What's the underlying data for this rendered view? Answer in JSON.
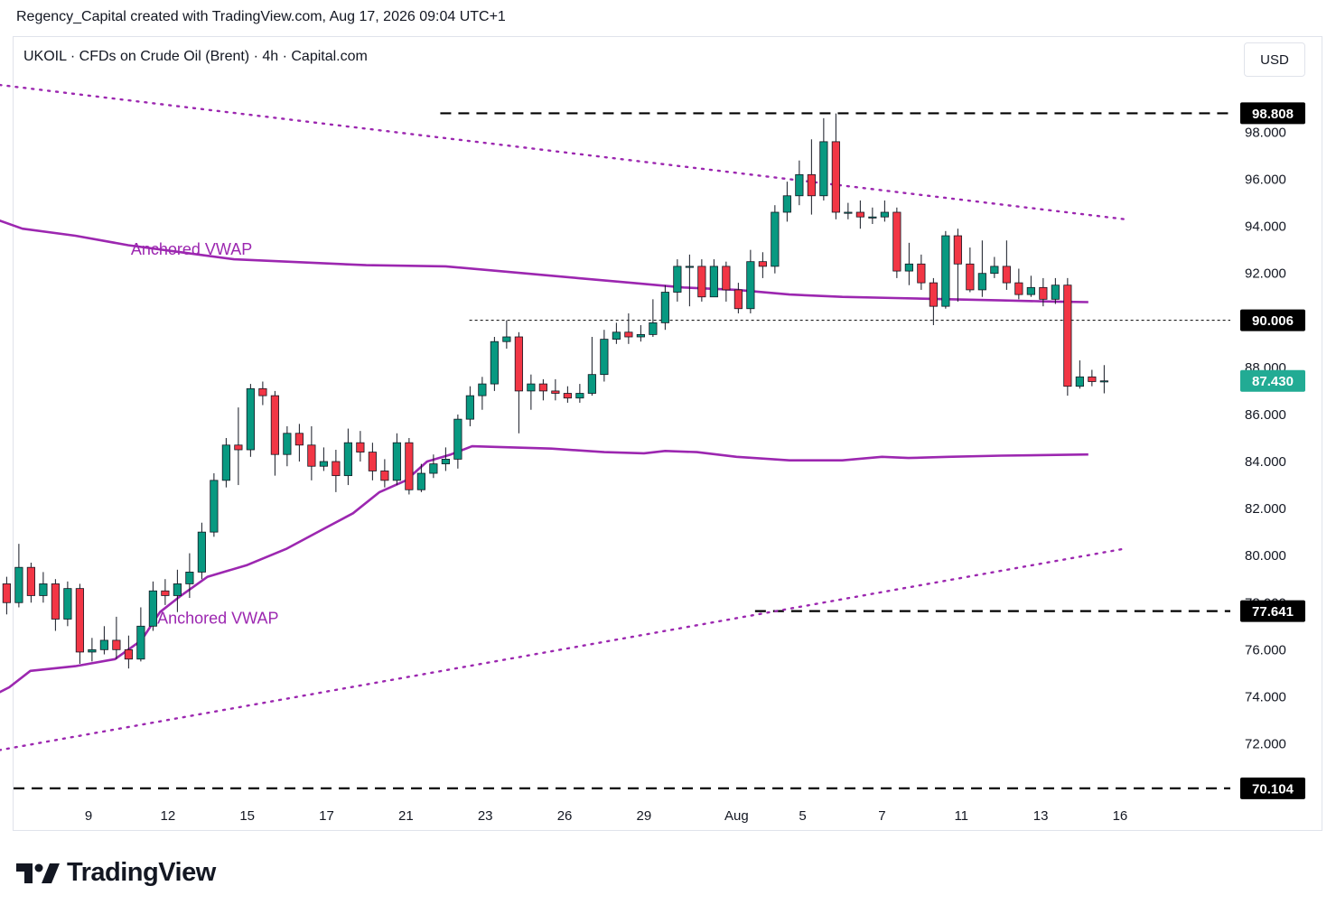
{
  "header": {
    "attribution": "Regency_Capital created with TradingView.com, Aug 17, 2026 09:04 UTC+1"
  },
  "legend": {
    "symbol_line": "UKOIL · CFDs on Crude Oil (Brent) · 4h · Capital.com"
  },
  "toolbar": {
    "currency": "USD"
  },
  "brand": {
    "name": "TradingView",
    "icon": "tradingview-logo-icon"
  },
  "colors": {
    "up": "#089981",
    "down": "#f23645",
    "vwap": "#9c27b0",
    "last_price_bg": "#22ab94",
    "level_label_bg": "#000000"
  },
  "chart_data": {
    "type": "candlestick",
    "symbol": "UKOIL",
    "interval": "4h",
    "ylim": [
      69.3,
      100.6
    ],
    "y_ticks": [
      72,
      74,
      76,
      78,
      80,
      82,
      84,
      86,
      88,
      90,
      92,
      94,
      96,
      98
    ],
    "y_tick_labels": [
      "72.000",
      "74.000",
      "76.000",
      "78.000",
      "80.000",
      "82.000",
      "84.000",
      "86.000",
      "88.000",
      "90.000",
      "92.000",
      "94.000",
      "96.000",
      "98.000"
    ],
    "x_tick_labels": [
      "9",
      "12",
      "15",
      "17",
      "21",
      "23",
      "26",
      "29",
      "Aug",
      "5",
      "7",
      "11",
      "13",
      "16"
    ],
    "x_tick_positions": [
      5.5,
      8.5,
      11.5,
      14.5,
      17.5,
      20.5,
      23.5,
      26.5,
      30,
      32.5,
      35.5,
      38.5,
      41.5,
      44.5
    ],
    "bar_count": 96,
    "bar_slot_range": [
      0.1,
      43.9
    ],
    "last_price": 87.43,
    "price_levels": [
      {
        "label": "98.808",
        "value": 98.808,
        "style": "dashed"
      },
      {
        "label": "90.006",
        "value": 90.006,
        "style": "dotted-thin"
      },
      {
        "label": "77.641",
        "value": 77.641,
        "style": "dashed"
      },
      {
        "label": "70.104",
        "value": 70.104,
        "style": "dashed"
      }
    ],
    "level_line_starts": [
      {
        "value": 98.808,
        "x": 18.8
      },
      {
        "value": 90.006,
        "x": 19.9
      },
      {
        "value": 77.641,
        "x": 30.7
      },
      {
        "value": 70.104,
        "x": 0
      }
    ],
    "trendlines": [
      {
        "name": "upper-trendline",
        "points": [
          [
            0,
            100.3
          ],
          [
            44.7,
            94.3
          ]
        ],
        "style": "dotted"
      },
      {
        "name": "lower-trendline",
        "points": [
          [
            0,
            71.3
          ],
          [
            44.7,
            80.3
          ]
        ],
        "style": "dotted"
      }
    ],
    "vwap_label": "Anchored VWAP",
    "vwap_upper": [
      [
        0,
        94.5
      ],
      [
        2,
        94.3
      ],
      [
        3,
        93.9
      ],
      [
        5,
        93.6
      ],
      [
        7,
        93.2
      ],
      [
        9,
        92.9
      ],
      [
        11,
        92.6
      ],
      [
        13,
        92.5
      ],
      [
        16,
        92.35
      ],
      [
        19,
        92.3
      ],
      [
        21,
        92.1
      ],
      [
        24,
        91.8
      ],
      [
        26,
        91.6
      ],
      [
        28,
        91.4
      ],
      [
        30,
        91.3
      ],
      [
        32,
        91.1
      ],
      [
        34,
        91.0
      ],
      [
        36,
        90.95
      ],
      [
        38,
        90.9
      ],
      [
        40,
        90.85
      ],
      [
        42,
        90.8
      ],
      [
        43.3,
        90.78
      ]
    ],
    "vwap_lower": [
      [
        0,
        71.7
      ],
      [
        1,
        72.3
      ],
      [
        1.8,
        74.0
      ],
      [
        2.5,
        74.4
      ],
      [
        3.3,
        75.1
      ],
      [
        5,
        75.3
      ],
      [
        6.5,
        75.6
      ],
      [
        7.5,
        76.4
      ],
      [
        8.2,
        77.6
      ],
      [
        9,
        78.3
      ],
      [
        10,
        79.1
      ],
      [
        11.5,
        79.6
      ],
      [
        13,
        80.3
      ],
      [
        14.5,
        81.2
      ],
      [
        15.5,
        81.8
      ],
      [
        16.5,
        82.7
      ],
      [
        17.5,
        83.2
      ],
      [
        18.3,
        84.0
      ],
      [
        19.2,
        84.3
      ],
      [
        20,
        84.65
      ],
      [
        23,
        84.55
      ],
      [
        25,
        84.4
      ],
      [
        26.5,
        84.35
      ],
      [
        27.3,
        84.45
      ],
      [
        28.5,
        84.4
      ],
      [
        30,
        84.2
      ],
      [
        32,
        84.05
      ],
      [
        34,
        84.05
      ],
      [
        35.5,
        84.2
      ],
      [
        36.5,
        84.15
      ],
      [
        38,
        84.2
      ],
      [
        40,
        84.25
      ],
      [
        43.3,
        84.3
      ]
    ],
    "vwap_label_positions": [
      [
        7.1,
        92.8
      ],
      [
        8.1,
        77.1
      ]
    ],
    "candles": [
      [
        73.0,
        72.6,
        72.5,
        73.2
      ],
      [
        72.6,
        74.0,
        72.5,
        74.2
      ],
      [
        74.0,
        75.6,
        73.9,
        75.8
      ],
      [
        75.6,
        76.3,
        75.3,
        76.7
      ],
      [
        76.3,
        78.8,
        76.0,
        79.0
      ],
      [
        78.8,
        78.0,
        77.5,
        79.1
      ],
      [
        78.0,
        79.5,
        77.8,
        80.5
      ],
      [
        79.5,
        78.3,
        78.0,
        79.7
      ],
      [
        78.3,
        78.8,
        78.0,
        79.3
      ],
      [
        78.8,
        77.3,
        76.8,
        79.0
      ],
      [
        77.3,
        78.6,
        77.0,
        78.9
      ],
      [
        78.6,
        75.9,
        75.4,
        78.8
      ],
      [
        75.9,
        76.0,
        75.5,
        76.5
      ],
      [
        76.0,
        76.4,
        75.8,
        77.0
      ],
      [
        76.4,
        76.0,
        75.6,
        77.4
      ],
      [
        76.0,
        75.6,
        75.2,
        76.6
      ],
      [
        75.6,
        77.0,
        75.5,
        77.8
      ],
      [
        77.0,
        78.5,
        76.8,
        78.9
      ],
      [
        78.5,
        78.3,
        77.9,
        79.0
      ],
      [
        78.3,
        78.8,
        77.6,
        79.4
      ],
      [
        78.8,
        79.3,
        78.2,
        80.1
      ],
      [
        79.3,
        81.0,
        79.0,
        81.4
      ],
      [
        81.0,
        83.2,
        80.8,
        83.5
      ],
      [
        83.2,
        84.7,
        82.9,
        85.0
      ],
      [
        84.7,
        84.5,
        83.0,
        86.3
      ],
      [
        84.5,
        87.1,
        84.2,
        87.3
      ],
      [
        87.1,
        86.8,
        86.4,
        87.4
      ],
      [
        86.8,
        84.3,
        83.4,
        87.0
      ],
      [
        84.3,
        85.2,
        83.8,
        85.5
      ],
      [
        85.2,
        84.7,
        84.0,
        85.6
      ],
      [
        84.7,
        83.8,
        83.2,
        85.5
      ],
      [
        83.8,
        84.0,
        83.6,
        84.6
      ],
      [
        84.0,
        83.4,
        82.7,
        84.5
      ],
      [
        83.4,
        84.8,
        83.0,
        85.4
      ],
      [
        84.8,
        84.4,
        84.0,
        85.3
      ],
      [
        84.4,
        83.6,
        83.2,
        84.8
      ],
      [
        83.6,
        83.2,
        82.9,
        84.1
      ],
      [
        83.2,
        84.8,
        83.0,
        85.2
      ],
      [
        84.8,
        82.8,
        82.6,
        85.0
      ],
      [
        82.8,
        83.5,
        82.7,
        83.9
      ],
      [
        83.5,
        83.9,
        83.3,
        84.3
      ],
      [
        83.9,
        84.1,
        83.6,
        84.6
      ],
      [
        84.1,
        85.8,
        83.7,
        86.0
      ],
      [
        85.8,
        86.8,
        85.5,
        87.2
      ],
      [
        86.8,
        87.3,
        86.2,
        87.6
      ],
      [
        87.3,
        89.1,
        87.0,
        89.3
      ],
      [
        89.1,
        89.3,
        88.8,
        90.0
      ],
      [
        89.3,
        87.0,
        85.2,
        89.5
      ],
      [
        87.0,
        87.3,
        86.2,
        87.7
      ],
      [
        87.3,
        87.0,
        86.6,
        87.5
      ],
      [
        87.0,
        86.9,
        86.6,
        87.5
      ],
      [
        86.9,
        86.7,
        86.5,
        87.2
      ],
      [
        86.7,
        86.9,
        86.5,
        87.3
      ],
      [
        86.9,
        87.7,
        86.8,
        89.3
      ],
      [
        87.7,
        89.2,
        87.4,
        89.6
      ],
      [
        89.2,
        89.5,
        89.0,
        89.9
      ],
      [
        89.5,
        89.3,
        89.0,
        90.3
      ],
      [
        89.3,
        89.4,
        89.1,
        89.8
      ],
      [
        89.4,
        89.9,
        89.3,
        90.9
      ],
      [
        89.9,
        91.2,
        89.6,
        91.5
      ],
      [
        91.2,
        92.3,
        90.8,
        92.6
      ],
      [
        92.3,
        92.3,
        90.6,
        92.8
      ],
      [
        92.3,
        91.0,
        90.8,
        92.6
      ],
      [
        91.0,
        92.3,
        91.0,
        92.6
      ],
      [
        92.3,
        91.3,
        90.8,
        92.5
      ],
      [
        91.3,
        90.5,
        90.3,
        91.6
      ],
      [
        90.5,
        92.5,
        90.3,
        93.0
      ],
      [
        92.5,
        92.3,
        91.8,
        92.9
      ],
      [
        92.3,
        94.6,
        92.0,
        94.9
      ],
      [
        94.6,
        95.3,
        94.2,
        95.9
      ],
      [
        95.3,
        96.2,
        94.9,
        96.8
      ],
      [
        96.2,
        95.3,
        94.5,
        97.7
      ],
      [
        95.3,
        97.6,
        95.1,
        98.6
      ],
      [
        97.6,
        94.6,
        94.3,
        98.8
      ],
      [
        94.6,
        94.6,
        94.3,
        95.0
      ],
      [
        94.6,
        94.4,
        93.9,
        95.1
      ],
      [
        94.4,
        94.4,
        94.1,
        94.8
      ],
      [
        94.4,
        94.6,
        94.2,
        95.1
      ],
      [
        94.6,
        92.1,
        91.8,
        94.8
      ],
      [
        92.1,
        92.4,
        91.5,
        93.3
      ],
      [
        92.4,
        91.6,
        91.3,
        92.8
      ],
      [
        91.6,
        90.6,
        89.8,
        91.8
      ],
      [
        90.6,
        93.6,
        90.5,
        93.8
      ],
      [
        93.6,
        92.4,
        90.8,
        93.9
      ],
      [
        92.4,
        91.3,
        91.2,
        93.1
      ],
      [
        91.3,
        92.0,
        91.0,
        93.4
      ],
      [
        92.0,
        92.3,
        91.8,
        92.7
      ],
      [
        92.3,
        91.6,
        91.3,
        93.4
      ],
      [
        91.6,
        91.1,
        90.9,
        92.2
      ],
      [
        91.1,
        91.4,
        91.0,
        91.9
      ],
      [
        91.4,
        90.9,
        90.6,
        91.8
      ],
      [
        90.9,
        91.5,
        90.7,
        91.8
      ],
      [
        91.5,
        87.2,
        86.8,
        91.8
      ],
      [
        87.2,
        87.6,
        87.1,
        88.3
      ],
      [
        87.6,
        87.4,
        87.2,
        87.9
      ],
      [
        87.4,
        87.43,
        86.9,
        88.1
      ]
    ]
  }
}
